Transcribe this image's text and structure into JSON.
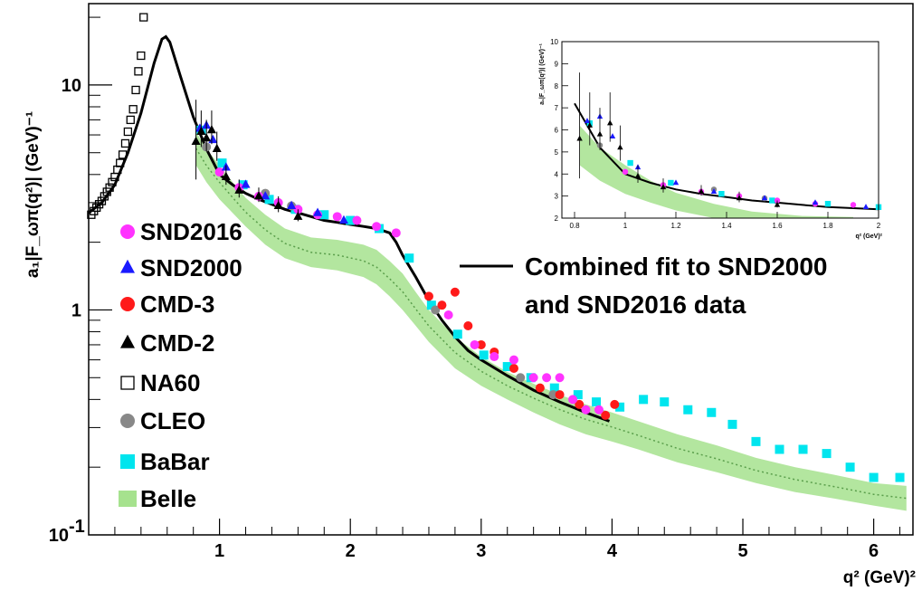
{
  "chart_data": {
    "type": "scatter",
    "y_scale": "log",
    "ylabel": "a₁|F_ωπ(q²)| (GeV)⁻¹",
    "xlabel": "q² (GeV)²",
    "xlim": [
      0,
      6.3
    ],
    "ylim": [
      0.1,
      23
    ],
    "x_ticks": [
      "1",
      "2",
      "3",
      "4",
      "5",
      "6"
    ],
    "y_ticks": [
      "1",
      "10"
    ],
    "y_tick_min": "10",
    "y_tick_min_exp": "-1",
    "legend": {
      "placement": "left",
      "items": [
        {
          "label": "SND2016",
          "marker": "circle",
          "color": "#ff33ff"
        },
        {
          "label": "SND2000",
          "marker": "triangle",
          "color": "#1a1aff"
        },
        {
          "label": "CMD-3",
          "marker": "circle",
          "color": "#ff1a1a"
        },
        {
          "label": "CMD-2",
          "marker": "triangle",
          "color": "#000000"
        },
        {
          "label": "NA60",
          "marker": "open-square",
          "color": "#000000"
        },
        {
          "label": "CLEO",
          "marker": "circle",
          "color": "#888888"
        },
        {
          "label": "BaBar",
          "marker": "square",
          "color": "#00e5ee"
        },
        {
          "label": "Belle",
          "marker": "band",
          "color": "#a6e28e"
        }
      ]
    },
    "fit_label_line1": "Combined fit to SND2000",
    "fit_label_line2": "and SND2016 data",
    "series": [
      {
        "name": "Combined fit to SND2000 and SND2016 data",
        "type": "line",
        "color": "#000000",
        "x": [
          0.0,
          0.1,
          0.2,
          0.3,
          0.4,
          0.5,
          0.56,
          0.59,
          0.62,
          0.7,
          0.8,
          0.9,
          1.0,
          1.1,
          1.2,
          1.3,
          1.4,
          1.5,
          1.6,
          1.7,
          1.8,
          1.9,
          2.0,
          2.1,
          2.2,
          2.3,
          2.35,
          2.4,
          2.5,
          2.6,
          2.7,
          2.8,
          2.9,
          3.0,
          3.2,
          3.4,
          3.6,
          3.8,
          3.98
        ],
        "y": [
          2.7,
          3.0,
          3.6,
          5.0,
          7.5,
          12.5,
          16.0,
          16.4,
          15.5,
          11.0,
          7.2,
          5.2,
          4.0,
          3.6,
          3.3,
          3.1,
          2.95,
          2.8,
          2.7,
          2.6,
          2.5,
          2.45,
          2.4,
          2.35,
          2.3,
          2.2,
          2.0,
          1.75,
          1.4,
          1.1,
          0.9,
          0.76,
          0.66,
          0.6,
          0.51,
          0.44,
          0.39,
          0.35,
          0.32
        ]
      },
      {
        "name": "SND2016",
        "marker": "circle",
        "color": "#ff33ff",
        "x": [
          1.0,
          1.15,
          1.3,
          1.45,
          1.6,
          1.75,
          1.9,
          2.05,
          2.2,
          2.35,
          2.75,
          2.95,
          3.1,
          3.25,
          3.4,
          3.5,
          3.6,
          3.7,
          3.8,
          3.9
        ],
        "y": [
          4.1,
          3.5,
          3.2,
          3.0,
          2.8,
          2.65,
          2.6,
          2.5,
          2.35,
          2.2,
          0.95,
          0.7,
          0.62,
          0.6,
          0.5,
          0.5,
          0.5,
          0.4,
          0.36,
          0.36
        ]
      },
      {
        "name": "SND2000",
        "marker": "triangle",
        "color": "#1a1aff",
        "x": [
          0.85,
          0.9,
          0.95,
          1.05,
          1.2,
          1.35,
          1.55,
          1.75,
          1.95
        ],
        "y": [
          6.4,
          6.6,
          5.7,
          4.3,
          3.6,
          3.2,
          2.9,
          2.7,
          2.5
        ]
      },
      {
        "name": "CMD-3",
        "marker": "circle",
        "color": "#ff1a1a",
        "x": [
          2.6,
          2.7,
          2.8,
          2.9,
          3.0,
          3.1,
          3.25,
          3.45,
          3.6,
          3.75,
          3.95,
          4.02
        ],
        "y": [
          1.15,
          1.05,
          1.2,
          0.85,
          0.7,
          0.65,
          0.55,
          0.45,
          0.42,
          0.38,
          0.34,
          0.38
        ]
      },
      {
        "name": "CMD-2",
        "marker": "triangle",
        "color": "#000000",
        "x": [
          0.82,
          0.86,
          0.9,
          0.94,
          0.98,
          1.05,
          1.15,
          1.3,
          1.45,
          1.6
        ],
        "y": [
          5.6,
          6.2,
          5.8,
          6.3,
          5.2,
          3.9,
          3.4,
          3.2,
          2.9,
          2.6
        ],
        "yerr": [
          3.0,
          1.5,
          1.2,
          1.4,
          1.0,
          0.5,
          0.4,
          0.3,
          0.3,
          0.2
        ]
      },
      {
        "name": "NA60",
        "marker": "open-square",
        "color": "#000000",
        "x": [
          0.02,
          0.04,
          0.06,
          0.08,
          0.1,
          0.12,
          0.14,
          0.16,
          0.18,
          0.2,
          0.22,
          0.24,
          0.26,
          0.28,
          0.3,
          0.32,
          0.34,
          0.36,
          0.38,
          0.4,
          0.42
        ],
        "y": [
          2.65,
          2.75,
          2.85,
          2.95,
          3.05,
          3.2,
          3.35,
          3.5,
          3.7,
          3.9,
          4.2,
          4.5,
          4.9,
          5.5,
          6.2,
          7.0,
          7.8,
          9.5,
          11.5,
          13.5,
          20.0
        ]
      },
      {
        "name": "CLEO",
        "marker": "circle",
        "color": "#888888",
        "x": [
          0.9,
          1.35,
          1.55,
          2.65,
          3.3,
          3.55
        ],
        "y": [
          5.3,
          3.3,
          2.9,
          1.0,
          0.5,
          0.42
        ]
      },
      {
        "name": "BaBar",
        "marker": "square",
        "color": "#00e5ee",
        "x": [
          0.86,
          1.02,
          1.18,
          1.38,
          1.58,
          1.8,
          2.0,
          2.22,
          2.45,
          2.62,
          2.82,
          3.02,
          3.2,
          3.38,
          3.56,
          3.74,
          3.88,
          4.06,
          4.24,
          4.4,
          4.58,
          4.76,
          4.92,
          5.1,
          5.28,
          5.46,
          5.64,
          5.82,
          6.0,
          6.2
        ],
        "y": [
          6.3,
          4.5,
          3.6,
          3.1,
          2.8,
          2.65,
          2.5,
          2.3,
          1.7,
          1.05,
          0.78,
          0.63,
          0.56,
          0.5,
          0.45,
          0.42,
          0.39,
          0.37,
          0.4,
          0.39,
          0.36,
          0.35,
          0.31,
          0.26,
          0.24,
          0.24,
          0.23,
          0.2,
          0.18,
          0.18
        ]
      },
      {
        "name": "Belle",
        "type": "band",
        "color": "#a6e28e",
        "x": [
          0.82,
          0.9,
          1.0,
          1.1,
          1.2,
          1.35,
          1.5,
          1.7,
          1.9,
          2.1,
          2.2,
          2.3,
          2.4,
          2.5,
          2.6,
          2.8,
          3.0,
          3.2,
          3.4,
          3.6,
          3.8,
          4.0,
          4.2,
          4.5,
          4.8,
          5.1,
          5.4,
          5.7,
          6.0,
          6.25
        ],
        "y_low": [
          4.4,
          3.7,
          3.1,
          2.7,
          2.35,
          1.95,
          1.7,
          1.55,
          1.5,
          1.4,
          1.3,
          1.15,
          1.0,
          0.85,
          0.72,
          0.55,
          0.46,
          0.4,
          0.35,
          0.31,
          0.28,
          0.26,
          0.24,
          0.21,
          0.19,
          0.17,
          0.155,
          0.145,
          0.135,
          0.128
        ],
        "y_high": [
          6.2,
          5.2,
          4.4,
          3.7,
          3.15,
          2.65,
          2.3,
          2.1,
          2.05,
          1.95,
          1.85,
          1.65,
          1.45,
          1.2,
          1.0,
          0.76,
          0.62,
          0.53,
          0.47,
          0.42,
          0.38,
          0.35,
          0.32,
          0.28,
          0.25,
          0.22,
          0.2,
          0.185,
          0.17,
          0.165
        ]
      }
    ],
    "inset": {
      "xlim": [
        0.75,
        2.0
      ],
      "ylim": [
        2,
        10
      ],
      "x_ticks": [
        "0.8",
        "1",
        "1.2",
        "1.4",
        "1.6",
        "1.8",
        "2"
      ],
      "y_ticks": [
        "2",
        "3",
        "4",
        "5",
        "6",
        "7",
        "8",
        "9",
        "10"
      ],
      "ylabel": "a₁|F_ωπ(q²)| (GeV)⁻¹",
      "xlabel": "q² (GeV)²"
    }
  }
}
